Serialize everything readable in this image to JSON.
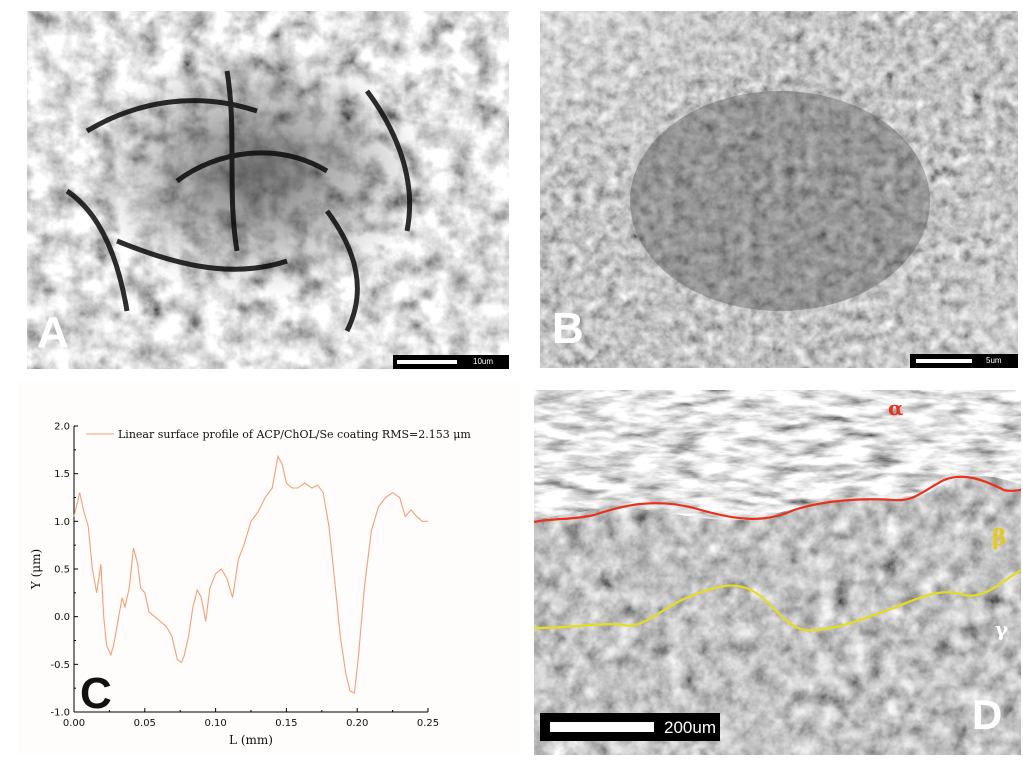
{
  "panels": {
    "a": {
      "label": "A",
      "scale_text": "10um"
    },
    "b": {
      "label": "B",
      "scale_text": "5um"
    },
    "c": {
      "label": "C"
    },
    "d": {
      "label": "D",
      "scale_text": "200um",
      "layers": {
        "alpha": "α",
        "beta": "β",
        "gamma": "γ"
      },
      "colors": {
        "alpha_line": "#e8321e",
        "beta_line": "#e6dc1e",
        "alpha_text": "#e8321e",
        "beta_text": "#e6c81e",
        "gamma_text": "#ffffff"
      }
    }
  },
  "chart_data": {
    "type": "line",
    "title": "",
    "xlabel": "L (mm)",
    "ylabel": "Y (μm)",
    "xlim": [
      0.0,
      0.25
    ],
    "ylim": [
      -1.0,
      2.0
    ],
    "xticks": [
      "0.00",
      "0.05",
      "0.10",
      "0.15",
      "0.20",
      "0.25"
    ],
    "yticks": [
      "-1.0",
      "-0.5",
      "0.0",
      "0.5",
      "1.0",
      "1.5",
      "2.0"
    ],
    "legend": "top-left",
    "grid": false,
    "series": [
      {
        "name": "Linear surface profile of ACP/ChOL/Se coating RMS=2.153 μm",
        "color": "#f4a07a",
        "x": [
          0.0,
          0.004,
          0.007,
          0.01,
          0.013,
          0.016,
          0.019,
          0.021,
          0.023,
          0.026,
          0.028,
          0.031,
          0.034,
          0.036,
          0.039,
          0.042,
          0.045,
          0.047,
          0.05,
          0.053,
          0.057,
          0.061,
          0.065,
          0.069,
          0.073,
          0.076,
          0.078,
          0.081,
          0.084,
          0.087,
          0.09,
          0.093,
          0.096,
          0.1,
          0.104,
          0.108,
          0.112,
          0.116,
          0.12,
          0.125,
          0.13,
          0.135,
          0.14,
          0.144,
          0.147,
          0.15,
          0.154,
          0.158,
          0.163,
          0.168,
          0.172,
          0.176,
          0.18,
          0.184,
          0.188,
          0.192,
          0.195,
          0.198,
          0.201,
          0.205,
          0.21,
          0.215,
          0.22,
          0.225,
          0.23,
          0.234,
          0.238,
          0.242,
          0.246,
          0.25
        ],
        "y": [
          1.05,
          1.3,
          1.1,
          0.95,
          0.5,
          0.25,
          0.55,
          0.0,
          -0.3,
          -0.4,
          -0.3,
          -0.05,
          0.2,
          0.1,
          0.3,
          0.72,
          0.55,
          0.3,
          0.25,
          0.05,
          0.0,
          -0.05,
          -0.1,
          -0.2,
          -0.45,
          -0.48,
          -0.4,
          -0.2,
          0.1,
          0.28,
          0.2,
          -0.05,
          0.3,
          0.45,
          0.5,
          0.4,
          0.2,
          0.6,
          0.75,
          1.0,
          1.1,
          1.25,
          1.35,
          1.68,
          1.6,
          1.4,
          1.35,
          1.35,
          1.4,
          1.35,
          1.38,
          1.3,
          0.95,
          0.4,
          -0.2,
          -0.6,
          -0.78,
          -0.8,
          -0.4,
          0.3,
          0.9,
          1.15,
          1.25,
          1.3,
          1.25,
          1.05,
          1.12,
          1.05,
          1.0,
          1.0
        ]
      }
    ]
  }
}
